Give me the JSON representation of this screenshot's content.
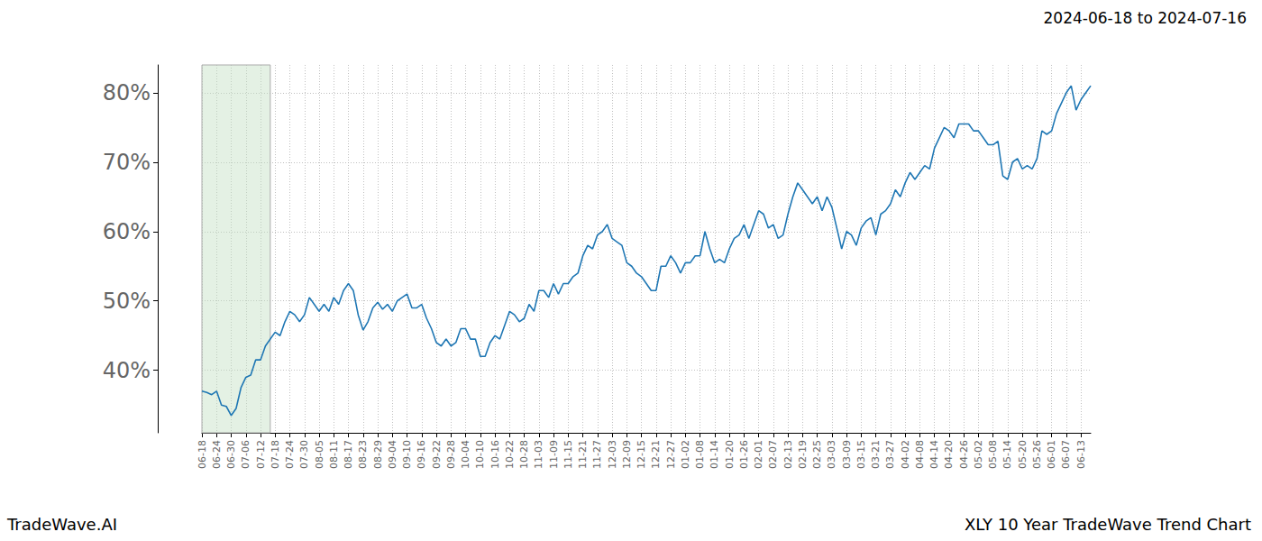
{
  "chart_data": {
    "type": "line",
    "title": "2024-06-18 to 2024-07-16",
    "annotations": [
      "TradeWave.AI",
      "XLY 10 Year TradeWave Trend Chart"
    ],
    "highlight": {
      "from": "06-18",
      "to": "07-16"
    },
    "categories": [
      "06-18",
      null,
      null,
      "06-24",
      null,
      null,
      "06-30",
      null,
      null,
      "07-06",
      null,
      null,
      "07-12",
      null,
      null,
      "07-18",
      null,
      null,
      "07-24",
      null,
      null,
      "07-30",
      null,
      null,
      "08-05",
      null,
      null,
      "08-11",
      null,
      null,
      "08-17",
      null,
      null,
      "08-23",
      null,
      null,
      "08-29",
      null,
      null,
      "09-04",
      null,
      null,
      "09-10",
      null,
      null,
      "09-16",
      null,
      null,
      "09-22",
      null,
      null,
      "09-28",
      null,
      null,
      "10-04",
      null,
      null,
      "10-10",
      null,
      null,
      "10-16",
      null,
      null,
      "10-22",
      null,
      null,
      "10-28",
      null,
      null,
      "11-03",
      null,
      null,
      "11-09",
      null,
      null,
      "11-15",
      null,
      null,
      "11-21",
      null,
      null,
      "11-27",
      null,
      null,
      "12-03",
      null,
      null,
      "12-09",
      null,
      null,
      "12-15",
      null,
      null,
      "12-21",
      null,
      null,
      "12-27",
      null,
      null,
      "01-02",
      null,
      null,
      "01-08",
      null,
      null,
      "01-14",
      null,
      null,
      "01-20",
      null,
      null,
      "01-26",
      null,
      null,
      "02-01",
      null,
      null,
      "02-07",
      null,
      null,
      "02-13",
      null,
      null,
      "02-19",
      null,
      null,
      "02-25",
      null,
      null,
      "03-03",
      null,
      null,
      "03-09",
      null,
      null,
      "03-15",
      null,
      null,
      "03-21",
      null,
      null,
      "03-27",
      null,
      null,
      "04-02",
      null,
      null,
      "04-08",
      null,
      null,
      "04-14",
      null,
      null,
      "04-20",
      null,
      null,
      "04-26",
      null,
      null,
      "05-02",
      null,
      null,
      "05-08",
      null,
      null,
      "05-14",
      null,
      null,
      "05-20",
      null,
      null,
      "05-26",
      null,
      null,
      "06-01",
      null,
      null,
      "06-07",
      null,
      null,
      "06-13",
      null,
      null
    ],
    "values": [
      37.0,
      36.8,
      36.5,
      37.0,
      35.0,
      34.8,
      33.5,
      34.5,
      37.5,
      39.0,
      39.3,
      41.5,
      41.5,
      43.5,
      44.5,
      45.5,
      45.0,
      47.0,
      48.5,
      48.0,
      47.0,
      48.0,
      50.5,
      49.5,
      48.5,
      49.5,
      48.5,
      50.5,
      49.5,
      51.5,
      52.5,
      51.5,
      48.0,
      45.8,
      47.0,
      49.0,
      49.8,
      48.8,
      49.5,
      48.5,
      50.0,
      50.5,
      51.0,
      49.0,
      49.0,
      49.5,
      47.5,
      46.0,
      44.0,
      43.5,
      44.5,
      43.5,
      44.0,
      46.0,
      46.0,
      44.5,
      44.5,
      42.0,
      42.0,
      44.0,
      45.0,
      44.5,
      46.5,
      48.5,
      48.0,
      47.0,
      47.5,
      49.5,
      48.5,
      51.5,
      51.5,
      50.5,
      52.5,
      51.0,
      52.5,
      52.5,
      53.5,
      54.0,
      56.5,
      58.0,
      57.5,
      59.5,
      60.0,
      61.0,
      59.0,
      58.5,
      58.0,
      55.5,
      55.0,
      54.0,
      53.5,
      52.5,
      51.5,
      51.5,
      55.0,
      55.0,
      56.5,
      55.5,
      54.0,
      55.5,
      55.5,
      56.5,
      56.5,
      60.0,
      57.5,
      55.5,
      56.0,
      55.5,
      57.5,
      59.0,
      59.5,
      61.0,
      59.0,
      61.0,
      63.0,
      62.5,
      60.5,
      61.0,
      59.0,
      59.5,
      62.5,
      65.0,
      67.0,
      66.0,
      65.0,
      64.0,
      65.0,
      63.0,
      65.0,
      63.5,
      60.5,
      57.5,
      60.0,
      59.5,
      58.0,
      60.5,
      61.5,
      62.0,
      59.5,
      62.5,
      63.0,
      64.0,
      66.0,
      65.0,
      67.0,
      68.5,
      67.5,
      68.5,
      69.5,
      69.0,
      72.0,
      73.5,
      75.0,
      74.5,
      73.5,
      75.5,
      75.5,
      75.5,
      74.5,
      74.5,
      73.5,
      72.5,
      72.5,
      73.0,
      68.0,
      67.5,
      70.0,
      70.5,
      69.0,
      69.5,
      69.0,
      70.5,
      74.5,
      74.0,
      74.5,
      77.0,
      78.5,
      80.0,
      81.0,
      77.5,
      79.0,
      80.0,
      81.0
    ],
    "color": "#1f77b4",
    "ylim": [
      31,
      84
    ],
    "yticks": [
      {
        "value": 40,
        "label": "40%"
      },
      {
        "value": 50,
        "label": "50%"
      },
      {
        "value": 60,
        "label": "60%"
      },
      {
        "value": 70,
        "label": "70%"
      },
      {
        "value": 80,
        "label": "80%"
      }
    ],
    "grid": true
  }
}
